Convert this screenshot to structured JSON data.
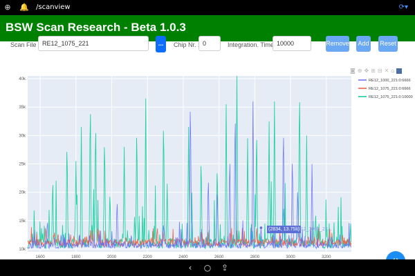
{
  "statusbar": {
    "path": "/scanview"
  },
  "app": {
    "title": "BSW Scan Research - Beta 1.0.3"
  },
  "controls": {
    "scan_file_label": "Scan File :",
    "scan_file_value": "RE12_1075_221",
    "browse_label": "...",
    "chip_label": "Chip Nr. :",
    "chip_value": "0",
    "integration_label": "Integration. Time :",
    "integration_value": "10000",
    "remove_label": "Remove",
    "add_label": "Add",
    "reset_label": "Reset"
  },
  "tooltip": {
    "value": "(2834, 13.75k)",
    "series": "RE12_1000_22..."
  },
  "colors": {
    "title_bg": "#008000",
    "series_blue": "#636efa",
    "series_red": "#ef553b",
    "series_green": "#00cc96",
    "plot_bg": "#e5ecf6"
  },
  "chart_data": {
    "type": "line",
    "x_ticks": [
      "1600",
      "1800",
      "2000",
      "2200",
      "2400",
      "2600",
      "2800",
      "3000",
      "3200"
    ],
    "y_ticks": [
      "10k",
      "15k",
      "20k",
      "25k",
      "30k",
      "35k",
      "40k"
    ],
    "xlim": [
      1530,
      3340
    ],
    "ylim": [
      9500,
      40500
    ],
    "grid": true,
    "legend_position": "top-right",
    "series": [
      {
        "name": "RE12_1000_221:0:6666",
        "color": "#636efa",
        "peaks": [
          [
            1640,
            15500
          ],
          [
            1820,
            13000
          ],
          [
            2030,
            19500
          ],
          [
            2290,
            15000
          ],
          [
            2440,
            39000
          ],
          [
            2540,
            24000
          ],
          [
            2590,
            21500
          ],
          [
            2660,
            28000
          ],
          [
            2690,
            36500
          ],
          [
            2790,
            36000
          ],
          [
            2835,
            13750
          ],
          [
            2960,
            33500
          ],
          [
            3010,
            28000
          ],
          [
            3040,
            22000
          ],
          [
            3120,
            25000
          ],
          [
            3230,
            12500
          ]
        ]
      },
      {
        "name": "RE12_1075_221:0:6666",
        "color": "#ef553b",
        "peaks": [
          [
            1700,
            13000
          ],
          [
            1850,
            12500
          ],
          [
            2100,
            11500
          ],
          [
            2300,
            12000
          ],
          [
            2500,
            13500
          ],
          [
            2700,
            12000
          ],
          [
            2900,
            11500
          ],
          [
            3100,
            12500
          ]
        ]
      },
      {
        "name": "RE12_1075_221:0:10000",
        "color": "#00cc96",
        "peaks": [
          [
            1600,
            11000
          ],
          [
            1670,
            23500
          ],
          [
            1750,
            30500
          ],
          [
            1800,
            25500
          ],
          [
            1830,
            31500
          ],
          [
            1880,
            38500
          ],
          [
            1910,
            34500
          ],
          [
            1960,
            31500
          ],
          [
            1990,
            21000
          ],
          [
            2070,
            28000
          ],
          [
            2140,
            33500
          ],
          [
            2190,
            36500
          ],
          [
            2290,
            35000
          ],
          [
            2310,
            21500
          ],
          [
            2430,
            31500
          ],
          [
            2500,
            27500
          ],
          [
            2590,
            26000
          ],
          [
            2640,
            35500
          ],
          [
            2700,
            41000
          ],
          [
            2760,
            29500
          ],
          [
            2810,
            33000
          ],
          [
            2880,
            32500
          ],
          [
            2910,
            36000
          ],
          [
            2960,
            18500
          ],
          [
            3050,
            41000
          ],
          [
            3090,
            30000
          ],
          [
            3140,
            17000
          ],
          [
            3200,
            12500
          ],
          [
            3250,
            11000
          ]
        ]
      }
    ]
  }
}
